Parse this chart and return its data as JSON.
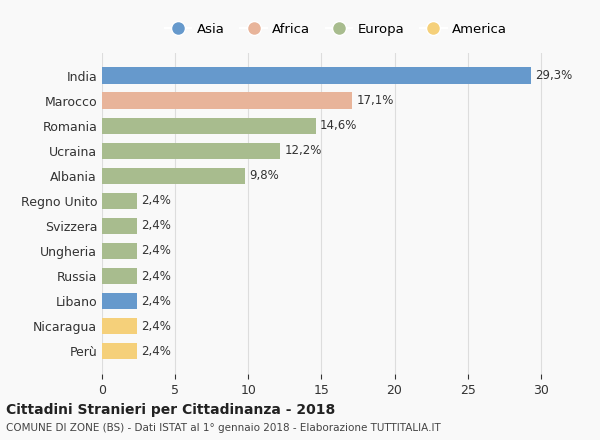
{
  "countries": [
    "India",
    "Marocco",
    "Romania",
    "Ucraina",
    "Albania",
    "Regno Unito",
    "Svizzera",
    "Ungheria",
    "Russia",
    "Libano",
    "Nicaragua",
    "Perù"
  ],
  "values": [
    29.3,
    17.1,
    14.6,
    12.2,
    9.8,
    2.4,
    2.4,
    2.4,
    2.4,
    2.4,
    2.4,
    2.4
  ],
  "labels": [
    "29,3%",
    "17,1%",
    "14,6%",
    "12,2%",
    "9,8%",
    "2,4%",
    "2,4%",
    "2,4%",
    "2,4%",
    "2,4%",
    "2,4%",
    "2,4%"
  ],
  "regions": [
    "Asia",
    "Africa",
    "Europa",
    "Europa",
    "Europa",
    "Europa",
    "Europa",
    "Europa",
    "Europa",
    "Asia",
    "America",
    "America"
  ],
  "colors": {
    "Asia": "#6699cc",
    "Africa": "#e8b49a",
    "Europa": "#a8bc8e",
    "America": "#f5d07a"
  },
  "legend_order": [
    "Asia",
    "Africa",
    "Europa",
    "America"
  ],
  "xlim": [
    0,
    32
  ],
  "xticks": [
    0,
    5,
    10,
    15,
    20,
    25,
    30
  ],
  "title": "Cittadini Stranieri per Cittadinanza - 2018",
  "subtitle": "COMUNE DI ZONE (BS) - Dati ISTAT al 1° gennaio 2018 - Elaborazione TUTTITALIA.IT",
  "bg_color": "#f9f9f9",
  "bar_height": 0.65,
  "grid_color": "#dddddd"
}
